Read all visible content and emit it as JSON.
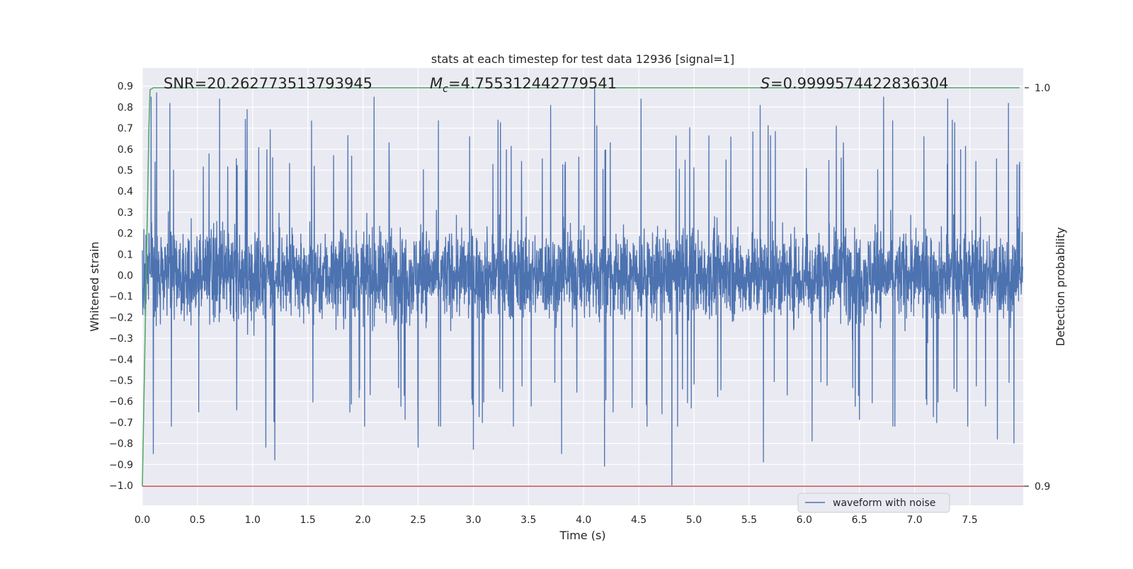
{
  "chart_data": {
    "type": "line",
    "title": "stats at each timestep for test data 12936 [signal=1]",
    "xlabel": "Time (s)",
    "ylabel": "Whitened strain",
    "y2label": "Detection probability",
    "xlim": [
      0.0,
      8.0
    ],
    "ylim": [
      -1.0,
      0.9
    ],
    "y2lim": [
      0.9,
      1.0
    ],
    "xticks": [
      "0.0",
      "0.5",
      "1.0",
      "1.5",
      "2.0",
      "2.5",
      "3.0",
      "3.5",
      "4.0",
      "4.5",
      "5.0",
      "5.5",
      "6.0",
      "6.5",
      "7.0",
      "7.5"
    ],
    "yticks": [
      "0.9",
      "0.8",
      "0.7",
      "0.6",
      "0.5",
      "0.4",
      "0.3",
      "0.2",
      "0.1",
      "0.0",
      "−0.1",
      "−0.2",
      "−0.3",
      "−0.4",
      "−0.5",
      "−0.6",
      "−0.7",
      "−0.8",
      "−0.9",
      "−1.0"
    ],
    "y2ticks": [
      "1.0",
      "0.9"
    ],
    "annotations": {
      "snr": "SNR=20.262773513793945",
      "mc_value": "=4.755312442779541",
      "s_value": "=0.9999574422836304"
    },
    "series": [
      {
        "name": "waveform with noise",
        "axis": "left",
        "color": "#4c72b0",
        "style": "dense noisy oscillation about 0, amplitude roughly ±0.45 with spikes to +0.9 and −1.0",
        "spikes": [
          {
            "x": 0.13,
            "y": 0.87
          },
          {
            "x": 0.08,
            "y": 0.85
          },
          {
            "x": 0.25,
            "y": 0.82
          },
          {
            "x": 0.7,
            "y": 0.84
          },
          {
            "x": 0.95,
            "y": 0.79
          },
          {
            "x": 2.1,
            "y": 0.85
          },
          {
            "x": 3.7,
            "y": 0.81
          },
          {
            "x": 4.1,
            "y": 0.9
          },
          {
            "x": 4.52,
            "y": 0.84
          },
          {
            "x": 5.6,
            "y": 0.81
          },
          {
            "x": 6.72,
            "y": 0.85
          },
          {
            "x": 7.3,
            "y": 0.84
          },
          {
            "x": 7.85,
            "y": 0.82
          },
          {
            "x": 0.1,
            "y": -0.85
          },
          {
            "x": 1.2,
            "y": -0.88
          },
          {
            "x": 1.12,
            "y": -0.82
          },
          {
            "x": 2.5,
            "y": -0.82
          },
          {
            "x": 3.0,
            "y": -0.83
          },
          {
            "x": 3.8,
            "y": -0.85
          },
          {
            "x": 4.19,
            "y": -0.91
          },
          {
            "x": 4.8,
            "y": -1.0
          },
          {
            "x": 5.63,
            "y": -0.89
          },
          {
            "x": 6.07,
            "y": -0.79
          },
          {
            "x": 7.75,
            "y": -0.78
          },
          {
            "x": 7.9,
            "y": -0.8
          }
        ]
      },
      {
        "name": "",
        "axis": "right",
        "color": "#55a868",
        "x": [
          0.0,
          0.06,
          0.07,
          0.1,
          0.2,
          7.95
        ],
        "y": [
          0.9,
          0.99,
          0.9995,
          1.0,
          1.0,
          1.0
        ]
      },
      {
        "name": "",
        "axis": "right",
        "color": "#c44e52",
        "x": [
          0.0,
          8.0
        ],
        "y": [
          0.9,
          0.9
        ]
      }
    ],
    "legend": {
      "location": "lower-right",
      "entries": [
        "waveform with noise"
      ]
    },
    "grid": true,
    "background": "#eaeaf2"
  }
}
